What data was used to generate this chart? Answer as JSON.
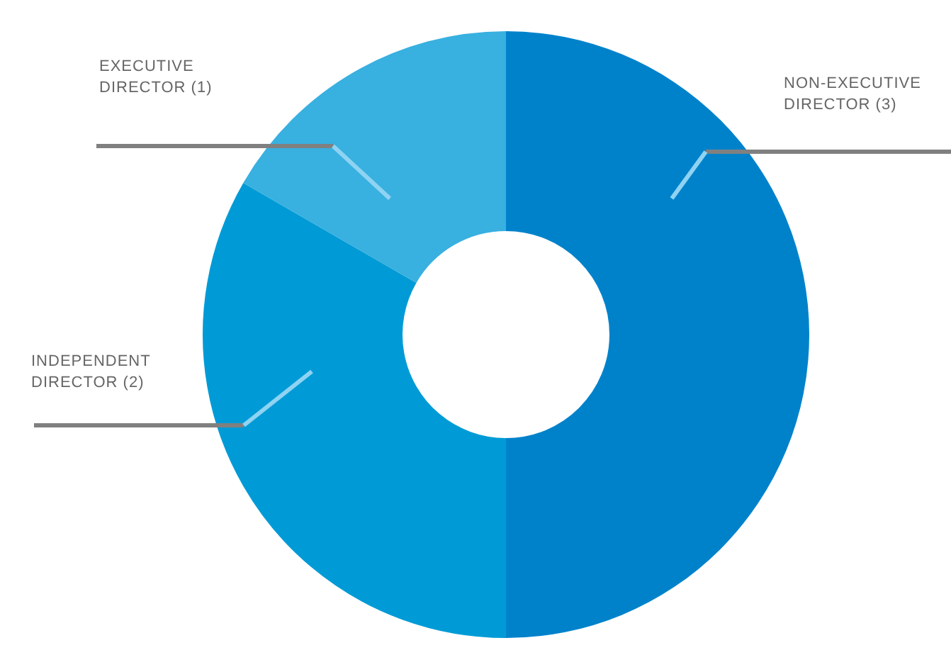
{
  "chart_data": {
    "type": "donut",
    "categories": [
      "NON-EXECUTIVE DIRECTOR (3)",
      "INDEPENDENT DIRECTOR (2)",
      "EXECUTIVE DIRECTOR (1)"
    ],
    "values": [
      3,
      2,
      1
    ],
    "colors": [
      "#0082cb",
      "#009bd6",
      "#38b0e0"
    ]
  }
}
